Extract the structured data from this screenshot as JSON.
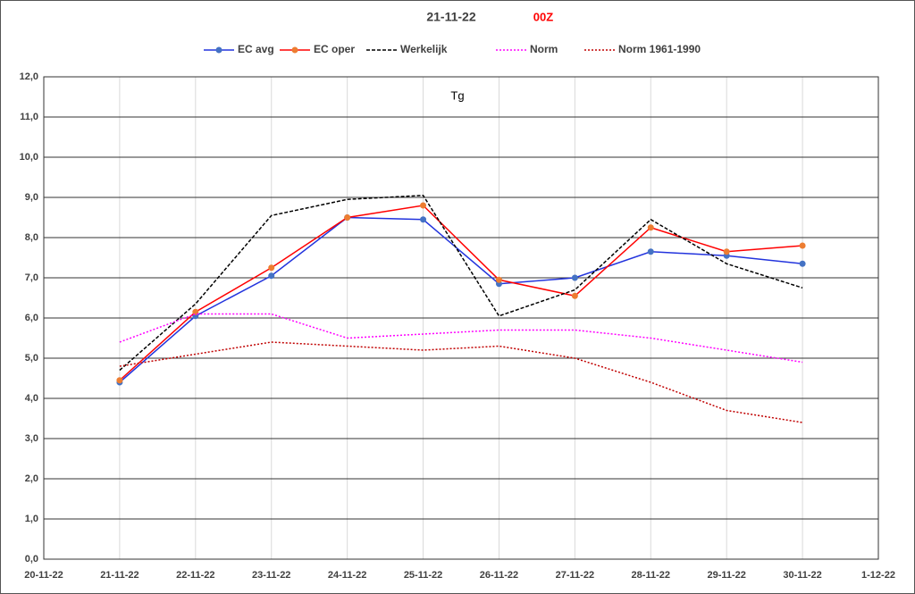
{
  "chart_data": {
    "type": "line",
    "title": "21-11-22",
    "subtitle": "00Z",
    "subtitle_color": "#ff0000",
    "annotation": "Tg",
    "categories": [
      "20-11-22",
      "21-11-22",
      "22-11-22",
      "23-11-22",
      "24-11-22",
      "25-11-22",
      "26-11-22",
      "27-11-22",
      "28-11-22",
      "29-11-22",
      "30-11-22",
      "1-12-22"
    ],
    "series": [
      {
        "name": "EC avg",
        "color": "#2233dd",
        "marker_color": "#4472c4",
        "dash": "solid",
        "values": [
          null,
          4.4,
          6.05,
          7.05,
          8.5,
          8.45,
          6.85,
          7.0,
          7.65,
          7.55,
          7.35,
          null
        ]
      },
      {
        "name": "EC oper",
        "color": "#ff0000",
        "marker_color": "#ed7d31",
        "dash": "solid",
        "values": [
          null,
          4.45,
          6.15,
          7.25,
          8.5,
          8.8,
          6.95,
          6.55,
          8.25,
          7.65,
          7.8,
          null
        ]
      },
      {
        "name": "Werkelijk",
        "color": "#000000",
        "dash": "dashed",
        "values": [
          null,
          4.7,
          6.35,
          8.55,
          8.95,
          9.05,
          6.05,
          6.7,
          8.45,
          7.35,
          6.75,
          null
        ]
      },
      {
        "name": "Norm",
        "color": "#ff00ff",
        "dash": "dotted",
        "values": [
          null,
          5.4,
          6.1,
          6.1,
          5.5,
          5.6,
          5.7,
          5.7,
          5.5,
          5.2,
          4.9,
          null
        ]
      },
      {
        "name": "Norm 1961-1990",
        "color": "#c00000",
        "dash": "dotted",
        "values": [
          null,
          4.8,
          5.1,
          5.4,
          5.3,
          5.2,
          5.3,
          5.0,
          4.4,
          3.7,
          3.4,
          null
        ]
      }
    ],
    "ylim": [
      0,
      12
    ],
    "yticks": [
      {
        "value": 0,
        "label": "0,0"
      },
      {
        "value": 1,
        "label": "1,0"
      },
      {
        "value": 2,
        "label": "2,0"
      },
      {
        "value": 3,
        "label": "3,0"
      },
      {
        "value": 4,
        "label": "4,0"
      },
      {
        "value": 5,
        "label": "5,0"
      },
      {
        "value": 6,
        "label": "6,0"
      },
      {
        "value": 7,
        "label": "7,0"
      },
      {
        "value": 8,
        "label": "8,0"
      },
      {
        "value": 9,
        "label": "9,0"
      },
      {
        "value": 10,
        "label": "10,0"
      },
      {
        "value": 11,
        "label": "11,0"
      },
      {
        "value": 12,
        "label": "12,0"
      }
    ],
    "grid": true,
    "legend": "top"
  }
}
